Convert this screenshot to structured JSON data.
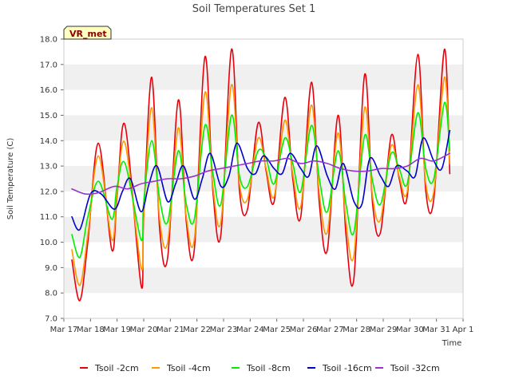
{
  "chart_data": {
    "type": "line",
    "title": "Soil Temperatures Set 1",
    "site_label": "VR_met",
    "xlabel": "Time",
    "ylabel": "Soil Temperature (C)",
    "ylim": [
      7.0,
      18.0
    ],
    "y_ticks": [
      "7.0",
      "8.0",
      "9.0",
      "10.0",
      "11.0",
      "12.0",
      "13.0",
      "14.0",
      "15.0",
      "16.0",
      "17.0",
      "18.0"
    ],
    "x_ticks": [
      "Mar 17",
      "Mar 18",
      "Mar 19",
      "Mar 20",
      "Mar 21",
      "Mar 22",
      "Mar 23",
      "Mar 24",
      "Mar 25",
      "Mar 26",
      "Mar 27",
      "Mar 28",
      "Mar 29",
      "Mar 30",
      "Mar 31",
      "Apr 1"
    ],
    "x_unit": "day of March",
    "xlim": [
      17,
      32
    ],
    "grid": "horizontal bands",
    "legend_position": "bottom",
    "series": [
      {
        "name": "Tsoil -2cm",
        "color": "#e8000b",
        "x": [
          17.3,
          17.6,
          17.9,
          18.3,
          18.8,
          19.0,
          19.3,
          19.9,
          20.0,
          20.3,
          20.6,
          20.9,
          21.3,
          21.6,
          21.9,
          22.3,
          22.6,
          22.9,
          23.3,
          23.6,
          23.9,
          24.3,
          24.6,
          24.9,
          25.3,
          25.6,
          25.9,
          26.3,
          26.6,
          26.9,
          27.3,
          27.6,
          27.9,
          28.3,
          28.6,
          28.9,
          29.3,
          29.6,
          29.9,
          30.3,
          30.6,
          30.9,
          31.3,
          31.5
        ],
        "y": [
          9.3,
          7.7,
          10.0,
          13.9,
          9.7,
          11.8,
          14.6,
          8.3,
          11.0,
          16.5,
          10.5,
          9.4,
          15.6,
          10.8,
          9.7,
          17.3,
          12.0,
          10.3,
          17.6,
          12.0,
          11.3,
          14.7,
          12.8,
          11.6,
          15.7,
          12.5,
          11.0,
          16.3,
          11.5,
          9.7,
          15.0,
          10.3,
          8.6,
          16.6,
          11.5,
          10.4,
          14.2,
          12.5,
          11.8,
          17.4,
          12.0,
          11.7,
          17.6,
          12.7
        ]
      },
      {
        "name": "Tsoil -4cm",
        "color": "#ff9900",
        "x": [
          17.3,
          17.6,
          17.9,
          18.3,
          18.8,
          19.0,
          19.3,
          19.9,
          20.0,
          20.3,
          20.6,
          20.9,
          21.3,
          21.6,
          21.9,
          22.3,
          22.6,
          22.9,
          23.3,
          23.6,
          23.9,
          24.3,
          24.6,
          24.9,
          25.3,
          25.6,
          25.9,
          26.3,
          26.6,
          26.9,
          27.3,
          27.6,
          27.9,
          28.3,
          28.6,
          28.9,
          29.3,
          29.6,
          29.9,
          30.3,
          30.6,
          30.9,
          31.3,
          31.5
        ],
        "y": [
          9.7,
          8.3,
          10.3,
          13.4,
          10.1,
          11.9,
          13.9,
          9.0,
          11.1,
          15.3,
          10.9,
          10.0,
          14.5,
          11.0,
          10.1,
          15.9,
          12.2,
          10.8,
          16.2,
          12.3,
          11.7,
          14.1,
          12.9,
          11.8,
          14.8,
          12.7,
          11.4,
          15.4,
          11.9,
          10.4,
          14.3,
          10.8,
          9.5,
          15.3,
          11.8,
          10.9,
          13.8,
          12.6,
          12.0,
          16.2,
          12.3,
          12.0,
          16.5,
          13.1
        ]
      },
      {
        "name": "Tsoil -8cm",
        "color": "#00ee00",
        "x": [
          17.3,
          17.6,
          17.9,
          18.3,
          18.8,
          19.0,
          19.3,
          19.9,
          20.0,
          20.3,
          20.6,
          20.9,
          21.3,
          21.6,
          21.9,
          22.3,
          22.6,
          22.9,
          23.3,
          23.6,
          23.9,
          24.3,
          24.6,
          24.9,
          25.3,
          25.6,
          25.9,
          26.3,
          26.6,
          26.9,
          27.3,
          27.6,
          27.9,
          28.3,
          28.6,
          28.9,
          29.3,
          29.6,
          29.9,
          30.3,
          30.6,
          30.9,
          31.3,
          31.5
        ],
        "y": [
          10.3,
          9.4,
          11.0,
          12.4,
          10.9,
          12.2,
          13.1,
          10.1,
          11.6,
          14.0,
          11.7,
          10.8,
          13.6,
          11.5,
          10.9,
          14.6,
          12.7,
          11.5,
          15.0,
          12.6,
          12.2,
          13.6,
          13.3,
          12.3,
          14.1,
          13.1,
          12.0,
          14.6,
          12.5,
          11.2,
          13.6,
          11.5,
          10.4,
          14.2,
          12.4,
          11.5,
          13.5,
          12.9,
          12.3,
          15.1,
          12.9,
          12.5,
          15.5,
          13.6
        ]
      },
      {
        "name": "Tsoil -16cm",
        "color": "#0000cc",
        "x": [
          17.3,
          17.6,
          18.0,
          18.4,
          18.9,
          19.2,
          19.5,
          19.9,
          20.2,
          20.5,
          20.9,
          21.2,
          21.5,
          21.9,
          22.2,
          22.5,
          22.9,
          23.2,
          23.5,
          23.9,
          24.2,
          24.5,
          24.9,
          25.2,
          25.5,
          25.9,
          26.2,
          26.5,
          26.9,
          27.2,
          27.5,
          27.9,
          28.2,
          28.5,
          28.9,
          29.2,
          29.5,
          29.9,
          30.2,
          30.5,
          30.9,
          31.2,
          31.5
        ],
        "y": [
          11.0,
          10.5,
          11.9,
          11.9,
          11.3,
          12.0,
          12.5,
          11.2,
          12.3,
          13.0,
          11.6,
          12.3,
          13.0,
          11.7,
          12.5,
          13.5,
          12.2,
          12.6,
          13.9,
          12.9,
          12.7,
          13.4,
          12.9,
          12.7,
          13.5,
          12.9,
          12.6,
          13.8,
          12.6,
          12.1,
          13.1,
          11.6,
          11.5,
          13.3,
          12.6,
          12.2,
          13.0,
          12.8,
          12.6,
          14.1,
          13.2,
          12.9,
          14.4
        ]
      },
      {
        "name": "Tsoil -32cm",
        "color": "#9933cc",
        "x": [
          17.3,
          17.8,
          18.3,
          18.9,
          19.4,
          19.9,
          20.4,
          20.9,
          21.4,
          21.9,
          22.4,
          22.9,
          23.4,
          23.9,
          24.4,
          24.9,
          25.4,
          25.9,
          26.4,
          26.9,
          27.4,
          27.9,
          28.4,
          28.9,
          29.4,
          29.9,
          30.4,
          30.9,
          31.5
        ],
        "y": [
          12.1,
          11.9,
          11.95,
          12.2,
          12.1,
          12.3,
          12.4,
          12.5,
          12.5,
          12.6,
          12.8,
          12.9,
          13.0,
          13.1,
          13.2,
          13.2,
          13.3,
          13.1,
          13.2,
          13.1,
          12.9,
          12.8,
          12.8,
          12.9,
          12.9,
          13.0,
          13.3,
          13.2,
          13.5
        ]
      }
    ]
  }
}
